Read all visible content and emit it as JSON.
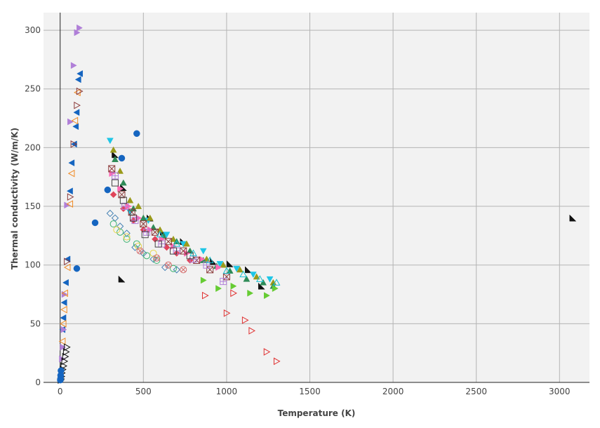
{
  "chart_data": {
    "type": "scatter",
    "title": "",
    "xlabel": "Temperature (K)",
    "ylabel": "Thermal conductivity (W/m/K)",
    "xlim": [
      -100,
      3180
    ],
    "ylim": [
      0,
      315
    ],
    "xticks": [
      0,
      500,
      1000,
      1500,
      2000,
      2500,
      3000
    ],
    "yticks": [
      0,
      50,
      100,
      150,
      200,
      250,
      300
    ],
    "grid": true,
    "legend": "none",
    "series": [
      {
        "color": "#1565c0",
        "marker": "circle",
        "x": [
          460,
          370,
          285,
          210,
          100
        ],
        "y": [
          212,
          191,
          164,
          136,
          97
        ]
      },
      {
        "color": "#1565c0",
        "marker": "triangle-left",
        "x": [
          120,
          110,
          100,
          95,
          85,
          70,
          60,
          45,
          35,
          25,
          20,
          15
        ],
        "y": [
          263,
          258,
          230,
          218,
          203,
          187,
          163,
          105,
          85,
          68,
          55,
          45
        ]
      },
      {
        "color": "#b07fd8",
        "marker": "triangle-right",
        "x": [
          115,
          100,
          80,
          60,
          40,
          25,
          20,
          15,
          10
        ],
        "y": [
          302,
          298,
          270,
          222,
          151,
          75,
          45,
          30,
          20
        ]
      },
      {
        "color": "#f08a24",
        "marker": "triangle-left-open",
        "x": [
          105,
          90,
          70,
          60,
          45,
          30,
          25,
          20,
          15
        ],
        "y": [
          247,
          223,
          178,
          152,
          98,
          76,
          62,
          50,
          35
        ]
      },
      {
        "color": "#8b3a3a",
        "marker": "triangle-right-open",
        "x": [
          115,
          100,
          80,
          60,
          40
        ],
        "y": [
          248,
          236,
          203,
          158,
          103
        ]
      },
      {
        "color": "#111111",
        "marker": "triangle-right-open",
        "x": [
          40,
          35,
          30,
          25,
          20,
          15,
          10,
          8,
          5,
          3
        ],
        "y": [
          30,
          26,
          22,
          18,
          14,
          11,
          8,
          5,
          3,
          2
        ]
      },
      {
        "color": "#111111",
        "marker": "triangle-corner",
        "x": [
          3080,
          370,
          1130,
          1210,
          1020,
          920,
          740,
          620,
          540,
          380,
          330
        ],
        "y": [
          140,
          88,
          96,
          82,
          101,
          103,
          120,
          128,
          140,
          166,
          194
        ]
      },
      {
        "color": "#1ec6e6",
        "marker": "triangle-down",
        "x": [
          300,
          420,
          530,
          640,
          740,
          860,
          960,
          1060,
          1160,
          1260
        ],
        "y": [
          206,
          145,
          138,
          126,
          118,
          112,
          101,
          97,
          92,
          88
        ]
      },
      {
        "color": "#9a9a1a",
        "marker": "triangle-up",
        "x": [
          320,
          360,
          420,
          470,
          540,
          600,
          680,
          760,
          880,
          980,
          1080,
          1180,
          1280
        ],
        "y": [
          198,
          180,
          155,
          150,
          140,
          130,
          122,
          118,
          105,
          100,
          96,
          90,
          85
        ]
      },
      {
        "color": "#2e8b57",
        "marker": "triangle-up",
        "x": [
          330,
          380,
          440,
          500,
          560,
          620,
          700,
          780,
          860,
          940,
          1020,
          1120,
          1220,
          1280
        ],
        "y": [
          190,
          170,
          148,
          140,
          132,
          125,
          120,
          112,
          104,
          99,
          95,
          88,
          85,
          82
        ]
      },
      {
        "color": "#4682b4",
        "marker": "diamond-open",
        "x": [
          300,
          330,
          360,
          400,
          450,
          500,
          560,
          630,
          700
        ],
        "y": [
          144,
          140,
          133,
          127,
          115,
          110,
          105,
          98,
          96
        ]
      },
      {
        "color": "#3cb371",
        "marker": "circle-open",
        "x": [
          320,
          360,
          400,
          460,
          520,
          580,
          680
        ],
        "y": [
          135,
          128,
          122,
          118,
          108,
          104,
          97
        ]
      },
      {
        "color": "#e8d548",
        "marker": "circle-open",
        "x": [
          340,
          400,
          470,
          560
        ],
        "y": [
          130,
          124,
          116,
          110
        ]
      },
      {
        "color": "#e0445a",
        "marker": "diamond",
        "x": [
          320,
          380,
          440,
          500,
          570,
          640,
          700,
          780
        ],
        "y": [
          160,
          148,
          138,
          130,
          122,
          115,
          110,
          104
        ]
      },
      {
        "color": "#ff69b4",
        "marker": "triangle-right",
        "x": [
          310,
          360,
          410,
          470,
          540,
          610,
          680,
          760,
          850,
          950
        ],
        "y": [
          178,
          165,
          150,
          140,
          130,
          122,
          116,
          110,
          105,
          98
        ]
      },
      {
        "color": "#e03131",
        "marker": "triangle-right-open",
        "x": [
          870,
          1000,
          1040,
          1110,
          1150,
          1240,
          1300
        ],
        "y": [
          74,
          59,
          76,
          53,
          44,
          26,
          18
        ]
      },
      {
        "color": "#d46a6a",
        "marker": "circle-cross-open",
        "x": [
          480,
          580,
          650,
          740
        ],
        "y": [
          112,
          106,
          100,
          96
        ]
      },
      {
        "color": "#66cc33",
        "marker": "triangle-right",
        "x": [
          860,
          950,
          1040,
          1140,
          1240,
          1290
        ],
        "y": [
          87,
          80,
          82,
          76,
          74,
          80
        ]
      },
      {
        "color": "#8b3a3a",
        "marker": "square-x-open",
        "x": [
          310,
          370,
          430,
          500,
          570,
          650,
          740,
          820,
          900,
          1000
        ],
        "y": [
          182,
          160,
          145,
          135,
          128,
          120,
          112,
          104,
          96,
          90
        ]
      },
      {
        "color": "#b07fd8",
        "marker": "square-plus-open",
        "x": [
          330,
          390,
          450,
          520,
          610,
          700,
          800,
          880,
          980
        ],
        "y": [
          176,
          150,
          138,
          128,
          118,
          112,
          105,
          100,
          86
        ]
      },
      {
        "color": "#444444",
        "marker": "square-open",
        "x": [
          330,
          380,
          440,
          510,
          590,
          680,
          780
        ],
        "y": [
          170,
          155,
          140,
          126,
          118,
          112,
          108
        ]
      },
      {
        "color": "#17becf",
        "marker": "triangle-up-open",
        "x": [
          600,
          700,
          800,
          900,
          1000,
          1100,
          1200,
          1300
        ],
        "y": [
          126,
          118,
          110,
          104,
          95,
          92,
          88,
          85
        ]
      },
      {
        "color": "#1565c0",
        "marker": "circle",
        "x": [
          5,
          3,
          2,
          1
        ],
        "y": [
          10,
          6,
          3,
          2
        ]
      }
    ]
  }
}
